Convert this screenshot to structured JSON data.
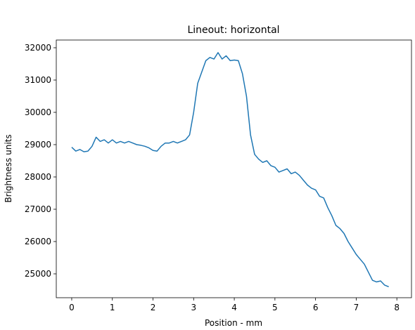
{
  "chart_data": {
    "type": "line",
    "title": "Lineout: horizontal",
    "x_label": "Position - mm",
    "y_label": "Brightness units",
    "color": "#1f77b4",
    "x": [
      0.0,
      0.1,
      0.2,
      0.3,
      0.4,
      0.5,
      0.6,
      0.7,
      0.8,
      0.9,
      1.0,
      1.1,
      1.2,
      1.3,
      1.4,
      1.5,
      1.6,
      1.7,
      1.8,
      1.9,
      2.0,
      2.1,
      2.2,
      2.3,
      2.4,
      2.5,
      2.6,
      2.7,
      2.8,
      2.9,
      3.0,
      3.1,
      3.2,
      3.3,
      3.4,
      3.5,
      3.6,
      3.7,
      3.8,
      3.9,
      4.0,
      4.1,
      4.2,
      4.3,
      4.4,
      4.5,
      4.6,
      4.7,
      4.8,
      4.9,
      5.0,
      5.1,
      5.2,
      5.3,
      5.4,
      5.5,
      5.6,
      5.7,
      5.8,
      5.9,
      6.0,
      6.1,
      6.2,
      6.3,
      6.4,
      6.5,
      6.6,
      6.7,
      6.8,
      6.9,
      7.0,
      7.1,
      7.2,
      7.3,
      7.4,
      7.5,
      7.6,
      7.7,
      7.8
    ],
    "values": [
      28920,
      28800,
      28850,
      28780,
      28800,
      28950,
      29230,
      29100,
      29150,
      29050,
      29150,
      29050,
      29100,
      29050,
      29100,
      29050,
      29000,
      28980,
      28950,
      28900,
      28820,
      28800,
      28950,
      29050,
      29050,
      29100,
      29050,
      29100,
      29150,
      29300,
      30000,
      30900,
      31250,
      31600,
      31700,
      31650,
      31850,
      31650,
      31750,
      31600,
      31620,
      31600,
      31200,
      30500,
      29300,
      28700,
      28550,
      28450,
      28500,
      28350,
      28300,
      28150,
      28200,
      28250,
      28100,
      28150,
      28050,
      27900,
      27750,
      27650,
      27600,
      27400,
      27350,
      27050,
      26800,
      26500,
      26400,
      26250,
      26000,
      25800,
      25600,
      25450,
      25300,
      25050,
      24800,
      24750,
      24780,
      24650,
      24600
    ],
    "xlim": [
      -0.38,
      8.36
    ],
    "ylim": [
      24261,
      32239
    ],
    "xticks": [
      0,
      1,
      2,
      3,
      4,
      5,
      6,
      7,
      8
    ],
    "yticks": [
      25000,
      26000,
      27000,
      28000,
      29000,
      30000,
      31000,
      32000
    ]
  }
}
